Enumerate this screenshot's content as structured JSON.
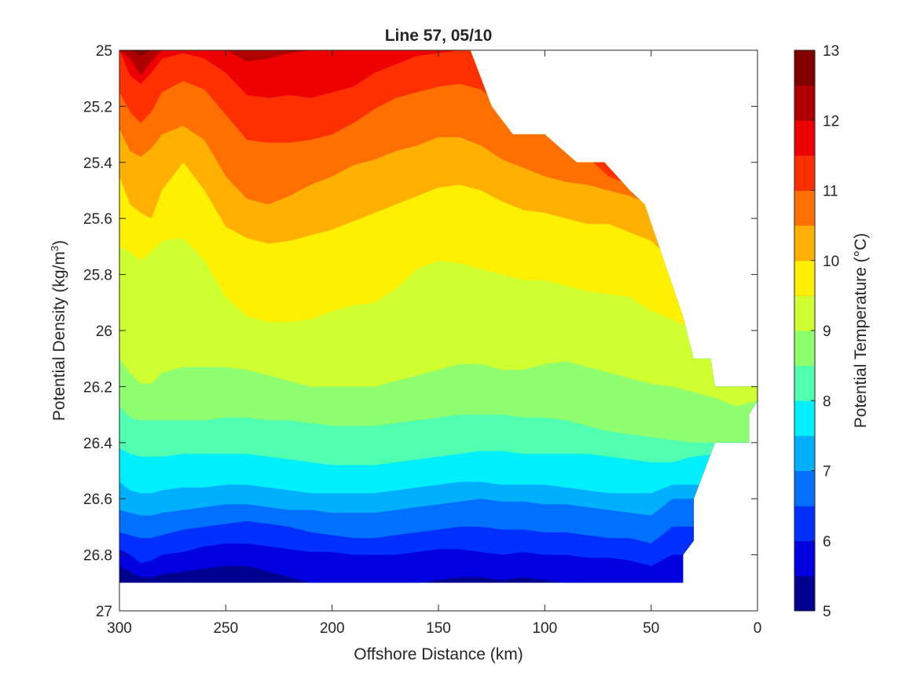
{
  "chart_data": {
    "type": "contourf",
    "title": "Line 57, 05/10",
    "xlabel": "Offshore Distance (km)",
    "ylabel_main": "Potential Density (kg/m",
    "ylabel_sup": "3",
    "ylabel_close": ")",
    "colorbar_label": "Potential Temperature (°C)",
    "xlim": [
      300,
      0
    ],
    "ylim": [
      27,
      25
    ],
    "y_reversed": true,
    "x_reversed": true,
    "xticks": [
      300,
      250,
      200,
      150,
      100,
      50,
      0
    ],
    "xtick_labels": [
      "300",
      "250",
      "200",
      "150",
      "100",
      "50",
      "0"
    ],
    "yticks": [
      25,
      25.2,
      25.4,
      25.6,
      25.8,
      26,
      26.2,
      26.4,
      26.6,
      26.8,
      27
    ],
    "ytick_labels": [
      "25",
      "25.2",
      "25.4",
      "25.6",
      "25.8",
      "26",
      "26.2",
      "26.4",
      "26.6",
      "26.8",
      "27"
    ],
    "colorbar": {
      "clim": [
        5,
        13
      ],
      "levels": [
        5,
        5.5,
        6,
        6.5,
        7,
        7.5,
        8,
        8.5,
        9,
        9.5,
        10,
        10.5,
        11,
        11.5,
        12,
        12.5,
        13
      ],
      "colors": [
        "#00008f",
        "#0000df",
        "#0030ff",
        "#0070ff",
        "#00b0ff",
        "#00efff",
        "#50ffaf",
        "#8fff70",
        "#cfff30",
        "#ffef00",
        "#ffb000",
        "#ff7000",
        "#ff3000",
        "#ef0000",
        "#af0000",
        "#800000"
      ],
      "ticks": [
        5,
        6,
        7,
        8,
        9,
        10,
        11,
        12,
        13
      ],
      "tick_labels": [
        "5",
        "6",
        "7",
        "8",
        "9",
        "10",
        "11",
        "12",
        "13"
      ]
    },
    "boundary_x": [
      300,
      285,
      250,
      200,
      140,
      135,
      125,
      115,
      100,
      85,
      72,
      60,
      53,
      35,
      30,
      22,
      20,
      15,
      0,
      0,
      4,
      4,
      20,
      30,
      30,
      35,
      35,
      300
    ],
    "boundary_y": [
      25,
      25,
      25,
      25,
      25,
      25,
      25.2,
      25.3,
      25.3,
      25.4,
      25.4,
      25.5,
      25.55,
      25.95,
      26.1,
      26.1,
      26.2,
      26.2,
      26.2,
      26.25,
      26.3,
      26.4,
      26.4,
      26.6,
      26.75,
      26.8,
      26.9,
      26.9
    ],
    "contour_x": [
      300,
      295,
      290,
      285,
      280,
      270,
      260,
      250,
      240,
      230,
      220,
      210,
      200,
      190,
      180,
      170,
      160,
      150,
      140,
      130,
      120,
      110,
      100,
      90,
      80,
      70,
      60,
      50,
      40,
      30,
      20,
      10,
      0
    ],
    "contours": [
      {
        "level": 5.5,
        "y": [
          26.84,
          26.86,
          26.88,
          26.88,
          26.87,
          26.86,
          26.85,
          26.84,
          26.84,
          26.86,
          26.88,
          26.9,
          26.9,
          26.9,
          26.9,
          26.9,
          26.9,
          26.89,
          26.88,
          26.88,
          26.89,
          26.88,
          26.89,
          26.9,
          26.9,
          26.9,
          26.9,
          26.9,
          26.9,
          26.9,
          26.9,
          26.9,
          26.9
        ]
      },
      {
        "level": 6.0,
        "y": [
          26.78,
          26.8,
          26.83,
          26.82,
          26.8,
          26.79,
          26.77,
          26.76,
          26.76,
          26.77,
          26.78,
          26.79,
          26.79,
          26.8,
          26.8,
          26.8,
          26.79,
          26.78,
          26.78,
          26.79,
          26.8,
          26.79,
          26.8,
          26.8,
          26.81,
          26.81,
          26.82,
          26.84,
          26.8,
          26.8,
          26.8,
          26.8,
          26.8
        ]
      },
      {
        "level": 6.5,
        "y": [
          26.72,
          26.73,
          26.74,
          26.74,
          26.73,
          26.71,
          26.7,
          26.69,
          26.68,
          26.69,
          26.7,
          26.72,
          26.73,
          26.74,
          26.74,
          26.73,
          26.72,
          26.71,
          26.7,
          26.7,
          26.71,
          26.71,
          26.72,
          26.72,
          26.73,
          26.74,
          26.74,
          26.76,
          26.7,
          26.7,
          26.7,
          26.7,
          26.7
        ]
      },
      {
        "level": 7.0,
        "y": [
          26.64,
          26.65,
          26.66,
          26.66,
          26.65,
          26.64,
          26.63,
          26.62,
          26.62,
          26.63,
          26.64,
          26.64,
          26.65,
          26.65,
          26.65,
          26.64,
          26.63,
          26.62,
          26.61,
          26.6,
          26.61,
          26.61,
          26.62,
          26.62,
          26.63,
          26.64,
          26.65,
          26.66,
          26.6,
          26.6,
          26.6,
          26.6,
          26.6
        ]
      },
      {
        "level": 7.5,
        "y": [
          26.54,
          26.57,
          26.58,
          26.58,
          26.57,
          26.56,
          26.56,
          26.55,
          26.55,
          26.56,
          26.57,
          26.58,
          26.58,
          26.58,
          26.58,
          26.57,
          26.56,
          26.55,
          26.54,
          26.54,
          26.55,
          26.55,
          26.55,
          26.56,
          26.57,
          26.58,
          26.58,
          26.58,
          26.55,
          26.55,
          26.55,
          26.55,
          26.55
        ]
      },
      {
        "level": 8.0,
        "y": [
          26.42,
          26.44,
          26.45,
          26.45,
          26.45,
          26.44,
          26.44,
          26.44,
          26.44,
          26.45,
          26.46,
          26.47,
          26.48,
          26.48,
          26.48,
          26.47,
          26.46,
          26.45,
          26.44,
          26.43,
          26.43,
          26.44,
          26.44,
          26.44,
          26.44,
          26.45,
          26.46,
          26.47,
          26.47,
          26.45,
          26.44,
          26.44,
          26.44
        ]
      },
      {
        "level": 8.5,
        "y": [
          26.27,
          26.31,
          26.32,
          26.32,
          26.32,
          26.32,
          26.32,
          26.31,
          26.31,
          26.32,
          26.32,
          26.33,
          26.34,
          26.34,
          26.34,
          26.33,
          26.32,
          26.31,
          26.3,
          26.3,
          26.3,
          26.31,
          26.31,
          26.32,
          26.34,
          26.36,
          26.37,
          26.38,
          26.39,
          26.4,
          26.4,
          26.4,
          26.4
        ]
      },
      {
        "level": 9.0,
        "y": [
          26.1,
          26.15,
          26.19,
          26.19,
          26.15,
          26.13,
          26.13,
          26.13,
          26.14,
          26.16,
          26.18,
          26.2,
          26.2,
          26.2,
          26.2,
          26.18,
          26.16,
          26.14,
          26.12,
          26.12,
          26.14,
          26.14,
          26.12,
          26.11,
          26.13,
          26.15,
          26.17,
          26.19,
          26.2,
          26.22,
          26.24,
          26.27,
          26.25
        ]
      },
      {
        "level": 9.5,
        "y": [
          25.7,
          25.72,
          25.75,
          25.72,
          25.68,
          25.67,
          25.75,
          25.88,
          25.95,
          25.97,
          25.97,
          25.96,
          25.93,
          25.91,
          25.9,
          25.85,
          25.78,
          25.75,
          25.76,
          25.78,
          25.8,
          25.82,
          25.82,
          25.84,
          25.86,
          25.87,
          25.88,
          25.93,
          25.96,
          26.0,
          26.1,
          26.2,
          26.2
        ]
      },
      {
        "level": 10.0,
        "y": [
          25.45,
          25.55,
          25.58,
          25.6,
          25.5,
          25.4,
          25.5,
          25.63,
          25.67,
          25.69,
          25.68,
          25.66,
          25.64,
          25.61,
          25.58,
          25.55,
          25.52,
          25.49,
          25.48,
          25.5,
          25.54,
          25.57,
          25.58,
          25.6,
          25.62,
          25.62,
          25.65,
          25.68,
          25.75,
          25.85,
          25.95,
          26.05,
          26.15
        ]
      },
      {
        "level": 10.5,
        "y": [
          25.28,
          25.36,
          25.38,
          25.35,
          25.3,
          25.27,
          25.32,
          25.45,
          25.53,
          25.55,
          25.52,
          25.48,
          25.45,
          25.41,
          25.39,
          25.36,
          25.34,
          25.31,
          25.31,
          25.34,
          25.39,
          25.42,
          25.45,
          25.47,
          25.48,
          25.5,
          25.52,
          25.55,
          25.65,
          25.78,
          25.9,
          26.0,
          26.1
        ]
      },
      {
        "level": 11.0,
        "y": [
          25.15,
          25.22,
          25.26,
          25.22,
          25.15,
          25.11,
          25.14,
          25.23,
          25.32,
          25.33,
          25.33,
          25.32,
          25.3,
          25.26,
          25.21,
          25.17,
          25.15,
          25.13,
          25.12,
          25.14,
          25.2,
          25.25,
          25.3,
          25.32,
          25.38,
          25.45,
          25.48,
          25.52,
          25.6,
          25.7,
          25.85,
          25.95,
          26.0
        ]
      },
      {
        "level": 11.5,
        "y": [
          25.0,
          25.09,
          25.12,
          25.08,
          25.03,
          25.01,
          25.03,
          25.08,
          25.16,
          25.17,
          25.16,
          25.17,
          25.15,
          25.13,
          25.08,
          25.05,
          25.02,
          25.01,
          25.0,
          25.0,
          25.04,
          25.12,
          25.22,
          25.3,
          25.35,
          25.4,
          25.45,
          25.5,
          25.6,
          25.7,
          25.85,
          25.95,
          26.0
        ]
      },
      {
        "level": 12.0,
        "y": [
          25.0,
          25.03,
          25.09,
          25.04,
          25.0,
          25.0,
          25.0,
          25.0,
          25.04,
          25.03,
          25.01,
          25.0,
          25.0,
          25.0,
          25.0,
          25.0,
          25.0,
          25.0,
          25.0,
          25.0,
          25.0,
          25.0,
          25.0,
          25.0,
          25.0,
          25.0,
          25.0,
          25.0,
          25.0,
          25.0,
          25.0,
          25.0,
          25.0
        ]
      },
      {
        "level": 12.5,
        "y": [
          25.0,
          25.0,
          25.02,
          25.0,
          25.0,
          25.0,
          25.0,
          25.0,
          25.0,
          25.0,
          25.0,
          25.0,
          25.0,
          25.0,
          25.0,
          25.0,
          25.0,
          25.0,
          25.0,
          25.0,
          25.0,
          25.0,
          25.0,
          25.0,
          25.0,
          25.0,
          25.0,
          25.0,
          25.0,
          25.0,
          25.0,
          25.0,
          25.0
        ]
      }
    ]
  }
}
